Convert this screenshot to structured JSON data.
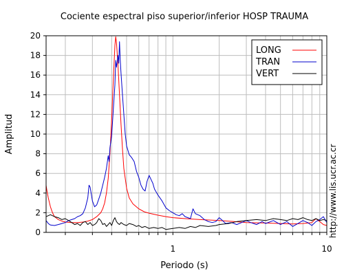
{
  "chart_data": {
    "type": "line",
    "title": "Cociente espectral piso superior/inferior  HOSP TRAUMA",
    "xlabel": "Periodo (s)",
    "ylabel": "Amplitud",
    "x_scale": "log",
    "xlim": [
      0.15,
      10
    ],
    "ylim": [
      0,
      20
    ],
    "x_tick_labels": [
      {
        "value": 1,
        "label": "1"
      },
      {
        "value": 10,
        "label": "10"
      }
    ],
    "x_minor_ticks": [
      0.2,
      0.3,
      0.4,
      0.5,
      0.6,
      0.7,
      0.8,
      0.9,
      2,
      3,
      4,
      5,
      6,
      7,
      8,
      9
    ],
    "y_ticks": [
      0,
      2,
      4,
      6,
      8,
      10,
      12,
      14,
      16,
      18,
      20
    ],
    "grid": true,
    "legend_position": "top-right",
    "side_text": "http://www.lis.ucr.ac.cr",
    "series": [
      {
        "name": "LONG",
        "color": "#ff0000",
        "points": [
          [
            0.15,
            4.8
          ],
          [
            0.152,
            4.2
          ],
          [
            0.155,
            3.5
          ],
          [
            0.16,
            2.6
          ],
          [
            0.165,
            2.0
          ],
          [
            0.17,
            1.6
          ],
          [
            0.18,
            1.3
          ],
          [
            0.19,
            1.15
          ],
          [
            0.2,
            1.05
          ],
          [
            0.22,
            1.0
          ],
          [
            0.24,
            1.0
          ],
          [
            0.26,
            1.05
          ],
          [
            0.28,
            1.15
          ],
          [
            0.3,
            1.3
          ],
          [
            0.32,
            1.6
          ],
          [
            0.34,
            2.0
          ],
          [
            0.35,
            2.4
          ],
          [
            0.36,
            3.0
          ],
          [
            0.37,
            4.0
          ],
          [
            0.38,
            5.5
          ],
          [
            0.39,
            8.0
          ],
          [
            0.4,
            11.5
          ],
          [
            0.41,
            15.5
          ],
          [
            0.42,
            19.0
          ],
          [
            0.425,
            19.9
          ],
          [
            0.43,
            19.3
          ],
          [
            0.44,
            17.0
          ],
          [
            0.45,
            14.0
          ],
          [
            0.46,
            11.0
          ],
          [
            0.47,
            8.5
          ],
          [
            0.48,
            6.5
          ],
          [
            0.5,
            4.5
          ],
          [
            0.52,
            3.5
          ],
          [
            0.55,
            2.9
          ],
          [
            0.6,
            2.4
          ],
          [
            0.65,
            2.1
          ],
          [
            0.7,
            1.95
          ],
          [
            0.8,
            1.75
          ],
          [
            0.9,
            1.6
          ],
          [
            1.0,
            1.5
          ],
          [
            1.2,
            1.4
          ],
          [
            1.5,
            1.3
          ],
          [
            2.0,
            1.2
          ],
          [
            2.5,
            1.1
          ],
          [
            3.0,
            1.0
          ],
          [
            4.0,
            0.95
          ],
          [
            5.0,
            0.9
          ],
          [
            6.0,
            0.85
          ],
          [
            7.0,
            0.9
          ],
          [
            8.0,
            1.0
          ],
          [
            8.5,
            1.4
          ],
          [
            9.0,
            1.1
          ],
          [
            9.5,
            0.8
          ],
          [
            10.0,
            0.7
          ]
        ]
      },
      {
        "name": "TRAN",
        "color": "#0000cc",
        "points": [
          [
            0.15,
            1.2
          ],
          [
            0.155,
            0.9
          ],
          [
            0.16,
            0.75
          ],
          [
            0.17,
            0.7
          ],
          [
            0.18,
            0.8
          ],
          [
            0.19,
            0.9
          ],
          [
            0.2,
            1.0
          ],
          [
            0.21,
            1.2
          ],
          [
            0.22,
            1.3
          ],
          [
            0.23,
            1.4
          ],
          [
            0.24,
            1.6
          ],
          [
            0.25,
            1.7
          ],
          [
            0.26,
            1.9
          ],
          [
            0.27,
            2.5
          ],
          [
            0.28,
            3.5
          ],
          [
            0.285,
            4.8
          ],
          [
            0.29,
            4.6
          ],
          [
            0.3,
            3.2
          ],
          [
            0.31,
            2.6
          ],
          [
            0.32,
            2.8
          ],
          [
            0.33,
            3.4
          ],
          [
            0.34,
            4.0
          ],
          [
            0.35,
            4.8
          ],
          [
            0.36,
            5.6
          ],
          [
            0.37,
            6.5
          ],
          [
            0.38,
            7.8
          ],
          [
            0.385,
            7.2
          ],
          [
            0.39,
            8.6
          ],
          [
            0.4,
            9.8
          ],
          [
            0.41,
            12.5
          ],
          [
            0.42,
            15.0
          ],
          [
            0.425,
            17.5
          ],
          [
            0.43,
            16.8
          ],
          [
            0.44,
            18.0
          ],
          [
            0.445,
            17.2
          ],
          [
            0.45,
            19.4
          ],
          [
            0.455,
            17.5
          ],
          [
            0.46,
            16.2
          ],
          [
            0.47,
            14.0
          ],
          [
            0.48,
            12.0
          ],
          [
            0.49,
            10.0
          ],
          [
            0.5,
            8.8
          ],
          [
            0.52,
            7.9
          ],
          [
            0.54,
            7.6
          ],
          [
            0.56,
            7.2
          ],
          [
            0.58,
            6.2
          ],
          [
            0.6,
            5.6
          ],
          [
            0.62,
            4.8
          ],
          [
            0.64,
            4.4
          ],
          [
            0.66,
            4.2
          ],
          [
            0.68,
            5.2
          ],
          [
            0.7,
            5.8
          ],
          [
            0.72,
            5.4
          ],
          [
            0.74,
            5.0
          ],
          [
            0.76,
            4.4
          ],
          [
            0.8,
            3.8
          ],
          [
            0.85,
            3.2
          ],
          [
            0.9,
            2.5
          ],
          [
            0.95,
            2.2
          ],
          [
            1.0,
            2.0
          ],
          [
            1.05,
            1.8
          ],
          [
            1.1,
            1.7
          ],
          [
            1.15,
            1.9
          ],
          [
            1.2,
            1.6
          ],
          [
            1.3,
            1.4
          ],
          [
            1.35,
            2.4
          ],
          [
            1.4,
            1.9
          ],
          [
            1.5,
            1.7
          ],
          [
            1.6,
            1.3
          ],
          [
            1.7,
            1.1
          ],
          [
            1.8,
            1.0
          ],
          [
            1.9,
            1.1
          ],
          [
            2.0,
            1.5
          ],
          [
            2.1,
            1.2
          ],
          [
            2.2,
            0.9
          ],
          [
            2.4,
            1.0
          ],
          [
            2.6,
            0.8
          ],
          [
            2.8,
            1.0
          ],
          [
            3.0,
            1.2
          ],
          [
            3.2,
            1.0
          ],
          [
            3.5,
            0.8
          ],
          [
            3.8,
            1.1
          ],
          [
            4.0,
            0.9
          ],
          [
            4.5,
            1.2
          ],
          [
            5.0,
            0.8
          ],
          [
            5.5,
            1.1
          ],
          [
            6.0,
            0.6
          ],
          [
            6.5,
            0.9
          ],
          [
            7.0,
            1.2
          ],
          [
            7.5,
            1.0
          ],
          [
            8.0,
            0.7
          ],
          [
            8.5,
            1.1
          ],
          [
            9.0,
            1.3
          ],
          [
            9.5,
            1.6
          ],
          [
            10.0,
            1.0
          ]
        ]
      },
      {
        "name": "VERT",
        "color": "#000000",
        "points": [
          [
            0.15,
            1.6
          ],
          [
            0.155,
            1.7
          ],
          [
            0.16,
            1.8
          ],
          [
            0.17,
            1.6
          ],
          [
            0.18,
            1.5
          ],
          [
            0.19,
            1.3
          ],
          [
            0.2,
            1.4
          ],
          [
            0.21,
            1.2
          ],
          [
            0.22,
            1.0
          ],
          [
            0.23,
            0.8
          ],
          [
            0.24,
            0.9
          ],
          [
            0.25,
            0.7
          ],
          [
            0.26,
            1.0
          ],
          [
            0.27,
            1.1
          ],
          [
            0.28,
            0.8
          ],
          [
            0.29,
            1.0
          ],
          [
            0.3,
            0.7
          ],
          [
            0.31,
            0.8
          ],
          [
            0.32,
            1.0
          ],
          [
            0.33,
            1.4
          ],
          [
            0.34,
            1.2
          ],
          [
            0.35,
            0.8
          ],
          [
            0.36,
            0.9
          ],
          [
            0.37,
            0.6
          ],
          [
            0.38,
            0.8
          ],
          [
            0.39,
            1.0
          ],
          [
            0.4,
            0.7
          ],
          [
            0.41,
            1.2
          ],
          [
            0.42,
            1.5
          ],
          [
            0.43,
            1.1
          ],
          [
            0.44,
            0.9
          ],
          [
            0.45,
            0.8
          ],
          [
            0.46,
            1.0
          ],
          [
            0.48,
            0.8
          ],
          [
            0.5,
            0.7
          ],
          [
            0.52,
            0.9
          ],
          [
            0.55,
            0.8
          ],
          [
            0.58,
            0.6
          ],
          [
            0.6,
            0.7
          ],
          [
            0.63,
            0.5
          ],
          [
            0.66,
            0.6
          ],
          [
            0.7,
            0.4
          ],
          [
            0.75,
            0.5
          ],
          [
            0.8,
            0.4
          ],
          [
            0.85,
            0.5
          ],
          [
            0.9,
            0.3
          ],
          [
            1.0,
            0.4
          ],
          [
            1.1,
            0.5
          ],
          [
            1.2,
            0.4
          ],
          [
            1.3,
            0.6
          ],
          [
            1.4,
            0.5
          ],
          [
            1.5,
            0.7
          ],
          [
            1.7,
            0.6
          ],
          [
            1.9,
            0.7
          ],
          [
            2.0,
            0.8
          ],
          [
            2.3,
            0.9
          ],
          [
            2.6,
            1.1
          ],
          [
            3.0,
            1.2
          ],
          [
            3.5,
            1.3
          ],
          [
            4.0,
            1.2
          ],
          [
            4.5,
            1.4
          ],
          [
            5.0,
            1.3
          ],
          [
            5.5,
            1.2
          ],
          [
            6.0,
            1.4
          ],
          [
            6.5,
            1.3
          ],
          [
            7.0,
            1.5
          ],
          [
            7.5,
            1.3
          ],
          [
            8.0,
            1.2
          ],
          [
            8.5,
            1.4
          ],
          [
            9.0,
            1.2
          ],
          [
            9.5,
            1.3
          ],
          [
            10.0,
            1.2
          ]
        ]
      }
    ]
  }
}
